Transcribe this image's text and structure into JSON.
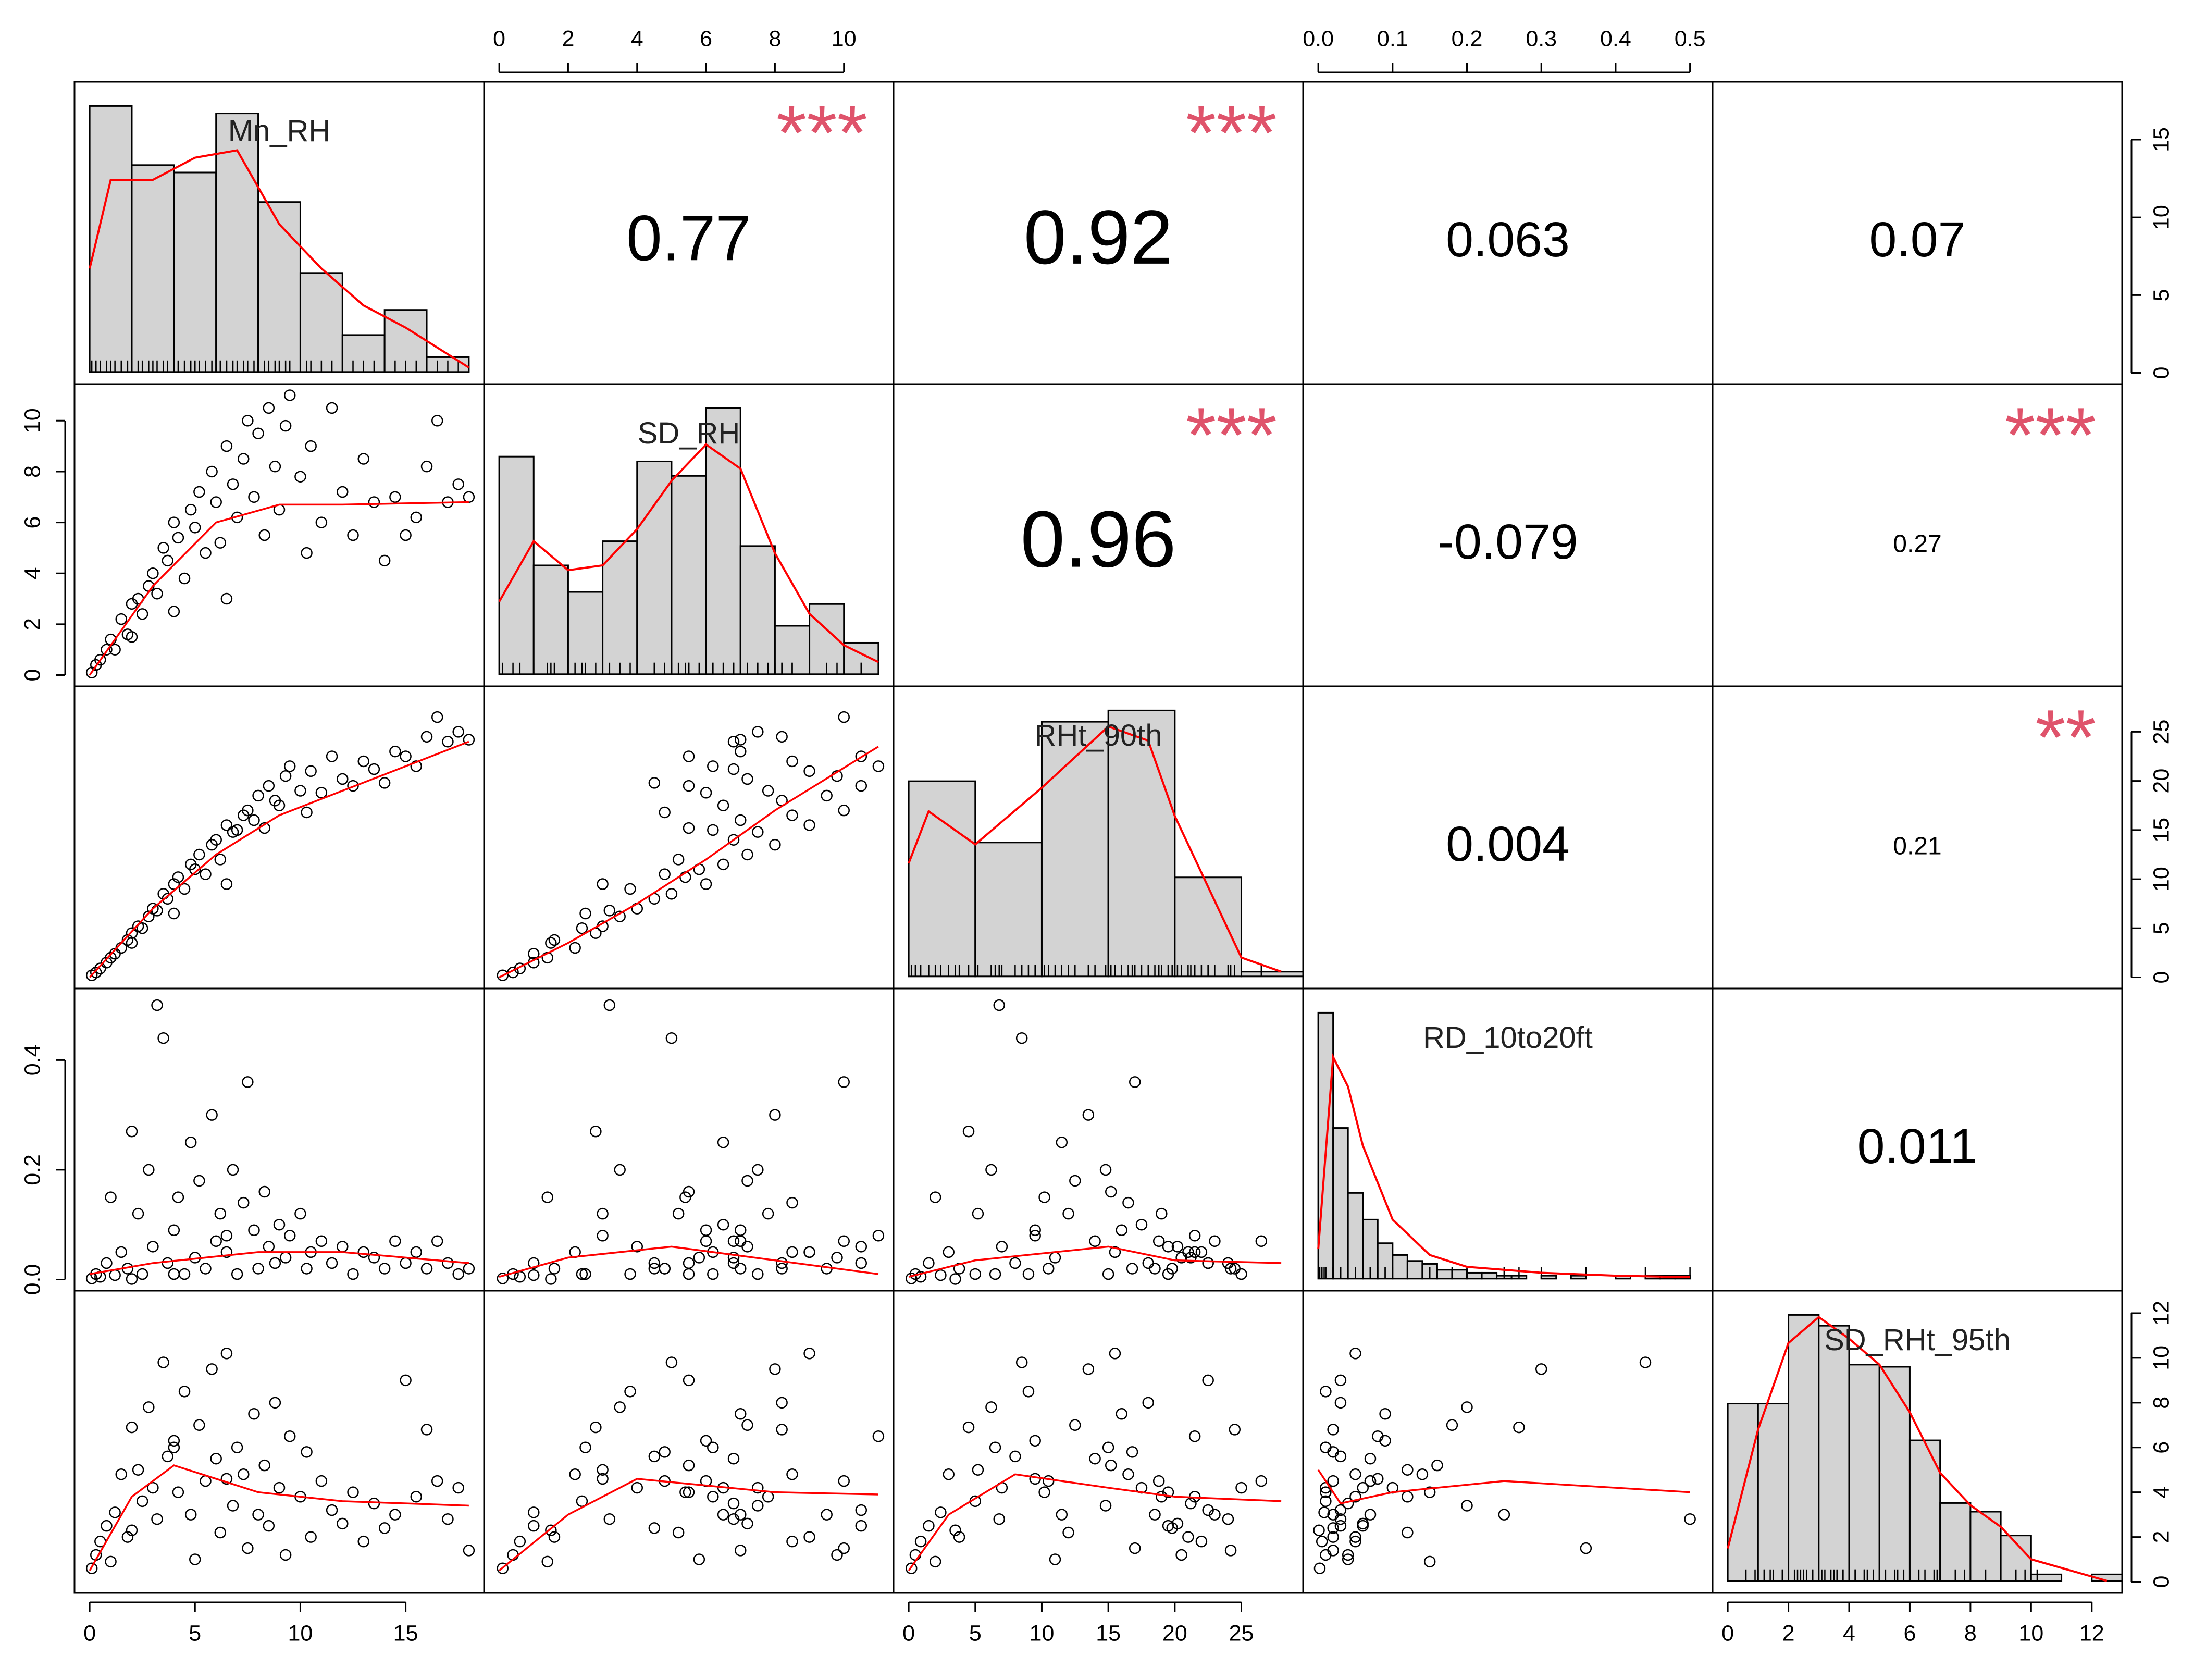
{
  "chart_data": {
    "type": "scatter_matrix",
    "variables": [
      "Mn_RH",
      "SD_RH",
      "RHt_90th",
      "RD_10to20ft",
      "SD_RHt_95th"
    ],
    "lims": [
      [
        0,
        18
      ],
      [
        0,
        11
      ],
      [
        0,
        28.5
      ],
      [
        0,
        0.51
      ],
      [
        0,
        12.5
      ]
    ],
    "point_color": "#000000",
    "smooth_color": "#ff0000",
    "star_color": "#df536b",
    "hist_color": "#d3d3d3",
    "observations": [
      [
        0.1,
        0.1,
        0.2,
        0.002,
        0.6
      ],
      [
        0.3,
        0.4,
        0.5,
        0.01,
        1.2
      ],
      [
        0.5,
        0.6,
        0.9,
        0.005,
        1.8
      ],
      [
        0.8,
        1.0,
        1.5,
        0.03,
        2.5
      ],
      [
        1.0,
        1.4,
        2.0,
        0.15,
        0.9
      ],
      [
        1.2,
        1.0,
        2.4,
        0.008,
        3.1
      ],
      [
        1.5,
        2.2,
        3.0,
        0.05,
        4.8
      ],
      [
        1.8,
        1.6,
        3.8,
        0.02,
        2.0
      ],
      [
        2.0,
        2.8,
        4.5,
        0.27,
        6.9
      ],
      [
        2.3,
        3.0,
        5.2,
        0.12,
        5.0
      ],
      [
        2.5,
        2.4,
        5.0,
        0.01,
        3.6
      ],
      [
        2.8,
        3.5,
        6.2,
        0.2,
        7.8
      ],
      [
        3.0,
        4.0,
        7.0,
        0.06,
        4.2
      ],
      [
        3.2,
        3.2,
        6.8,
        0.5,
        2.8
      ],
      [
        3.5,
        5.0,
        8.5,
        0.44,
        9.8
      ],
      [
        3.7,
        4.5,
        8.0,
        0.03,
        5.6
      ],
      [
        4.0,
        6.0,
        9.5,
        0.09,
        6.3
      ],
      [
        4.2,
        5.4,
        10.2,
        0.15,
        4.0
      ],
      [
        4.5,
        3.8,
        9.0,
        0.01,
        8.5
      ],
      [
        4.8,
        6.5,
        11.5,
        0.25,
        3.0
      ],
      [
        5.0,
        5.8,
        11.0,
        0.04,
        1.0
      ],
      [
        5.2,
        7.2,
        12.5,
        0.18,
        7.0
      ],
      [
        5.5,
        4.8,
        10.5,
        0.02,
        4.5
      ],
      [
        5.8,
        8.0,
        13.5,
        0.3,
        9.5
      ],
      [
        6.0,
        6.8,
        14.0,
        0.07,
        5.5
      ],
      [
        6.2,
        5.2,
        12.0,
        0.12,
        2.2
      ],
      [
        6.5,
        9.0,
        15.5,
        0.05,
        10.2
      ],
      [
        6.8,
        7.5,
        14.8,
        0.2,
        3.4
      ],
      [
        7.0,
        6.2,
        15.0,
        0.01,
        6.0
      ],
      [
        7.3,
        8.5,
        16.5,
        0.14,
        4.8
      ],
      [
        7.5,
        10.0,
        17.0,
        0.36,
        1.5
      ],
      [
        7.8,
        7.0,
        16.0,
        0.09,
        7.5
      ],
      [
        8.0,
        9.5,
        18.5,
        0.02,
        3.0
      ],
      [
        8.3,
        5.5,
        15.2,
        0.16,
        5.2
      ],
      [
        8.5,
        10.5,
        19.5,
        0.06,
        2.5
      ],
      [
        8.8,
        8.2,
        18.0,
        0.03,
        8.0
      ],
      [
        9.0,
        6.5,
        17.5,
        0.1,
        4.2
      ],
      [
        9.3,
        9.8,
        20.5,
        0.04,
        1.2
      ],
      [
        9.5,
        11.0,
        21.5,
        0.08,
        6.5
      ],
      [
        10.0,
        7.8,
        19.0,
        0.12,
        3.8
      ],
      [
        10.3,
        4.8,
        16.8,
        0.02,
        5.8
      ],
      [
        10.5,
        9.0,
        21.0,
        0.05,
        2.0
      ],
      [
        11.0,
        6.0,
        18.8,
        0.07,
        4.5
      ],
      [
        11.5,
        10.5,
        22.5,
        0.03,
        3.2
      ],
      [
        12.0,
        7.2,
        20.2,
        0.06,
        2.6
      ],
      [
        12.5,
        5.5,
        19.5,
        0.01,
        4.0
      ],
      [
        13.0,
        8.5,
        22.0,
        0.05,
        1.8
      ],
      [
        13.5,
        6.8,
        21.2,
        0.04,
        3.5
      ],
      [
        14.0,
        4.5,
        19.8,
        0.02,
        2.4
      ],
      [
        14.5,
        7.0,
        23.0,
        0.07,
        3.0
      ],
      [
        15.0,
        5.5,
        22.5,
        0.03,
        9.0
      ],
      [
        15.5,
        6.2,
        21.5,
        0.05,
        3.8
      ],
      [
        16.0,
        8.2,
        24.5,
        0.02,
        6.8
      ],
      [
        16.5,
        10.0,
        26.5,
        0.07,
        4.5
      ],
      [
        17.0,
        6.8,
        24.0,
        0.03,
        2.8
      ],
      [
        17.5,
        7.5,
        25.0,
        0.01,
        4.2
      ],
      [
        18.0,
        7.0,
        24.2,
        0.02,
        1.4
      ],
      [
        2.0,
        1.5,
        3.5,
        0.001,
        2.3
      ],
      [
        4.0,
        2.5,
        6.5,
        0.01,
        6.0
      ],
      [
        6.5,
        3.0,
        9.5,
        0.08,
        4.6
      ]
    ],
    "histograms": [
      {
        "bins": [
          0,
          2,
          4,
          6,
          8,
          10,
          12,
          14,
          16,
          18
        ],
        "counts": [
          18,
          14,
          13.5,
          17.5,
          11.5,
          6.7,
          2.5,
          4.2,
          1
        ],
        "density": {
          "x": [
            0,
            1,
            3,
            5,
            7,
            9,
            11,
            13,
            15,
            18
          ],
          "y": [
            7,
            13,
            13,
            14.5,
            15,
            10,
            7,
            4.5,
            3,
            0.3
          ]
        }
      },
      {
        "bins": [
          0,
          1,
          2,
          3,
          4,
          5,
          6,
          7,
          8,
          9,
          10,
          11
        ],
        "counts": [
          9,
          4.5,
          3.4,
          5.5,
          8.8,
          8.2,
          11,
          5.3,
          2,
          2.9,
          1.3
        ],
        "density": {
          "x": [
            0,
            1,
            2,
            3,
            4,
            5,
            6,
            7,
            8,
            9,
            10,
            11
          ],
          "y": [
            3,
            5.5,
            4.3,
            4.5,
            6,
            8,
            9.5,
            8.5,
            5,
            2.5,
            1.2,
            0.5
          ]
        }
      },
      {
        "bins": [
          0,
          5,
          10,
          15,
          20,
          25,
          30
        ],
        "counts": [
          20.7,
          14.2,
          27,
          28.2,
          10.5,
          0.5
        ],
        "density": {
          "x": [
            0,
            1.5,
            5,
            10,
            15,
            18,
            20,
            25,
            28
          ],
          "y": [
            12,
            17.5,
            14,
            20,
            26.5,
            25,
            17,
            2,
            0.5
          ]
        }
      },
      {
        "bins": [
          0,
          0.02,
          0.04,
          0.06,
          0.08,
          0.1,
          0.12,
          0.14,
          0.16,
          0.18,
          0.2,
          0.22,
          0.24,
          0.26,
          0.28,
          0.3,
          0.32,
          0.34,
          0.36,
          0.38,
          0.4,
          0.42,
          0.44,
          0.46,
          0.48,
          0.5
        ],
        "counts": [
          90,
          51,
          29,
          20,
          12,
          8,
          6,
          5,
          3,
          3,
          2,
          2,
          1,
          1,
          0,
          1,
          0,
          1,
          0,
          0,
          1,
          0,
          1,
          1,
          1
        ],
        "density": {
          "x": [
            0,
            0.02,
            0.04,
            0.06,
            0.1,
            0.15,
            0.2,
            0.3,
            0.4,
            0.5
          ],
          "y": [
            10,
            75,
            65,
            45,
            20,
            8,
            4,
            2,
            1,
            0.5
          ]
        }
      },
      {
        "bins": [
          0,
          1,
          2,
          3,
          4,
          5,
          6,
          7,
          8,
          9,
          10,
          11,
          12,
          13
        ],
        "counts": [
          8.2,
          8.2,
          12.3,
          11.8,
          10,
          9.9,
          6.5,
          3.6,
          3.2,
          2.1,
          0.3,
          0,
          0.3
        ],
        "density": {
          "x": [
            0,
            1,
            2,
            3,
            4,
            5,
            6,
            7,
            8,
            9,
            10,
            12,
            12.5
          ],
          "y": [
            1.5,
            7,
            11,
            12.2,
            11.2,
            10,
            7.8,
            5,
            3.5,
            2.5,
            1,
            0.2,
            0
          ]
        }
      }
    ],
    "smooths": [
      {
        "row": 1,
        "col": 0,
        "x": [
          0,
          3,
          6,
          9,
          12,
          18
        ],
        "y": [
          0,
          3.5,
          6,
          6.7,
          6.7,
          6.8
        ]
      },
      {
        "row": 2,
        "col": 0,
        "x": [
          0,
          3,
          6,
          9,
          12,
          18
        ],
        "y": [
          0,
          7,
          12.5,
          16.5,
          19,
          24
        ]
      },
      {
        "row": 2,
        "col": 1,
        "x": [
          0,
          2,
          4,
          6,
          8,
          11
        ],
        "y": [
          0,
          3.5,
          7.5,
          12,
          17,
          23.5
        ]
      },
      {
        "row": 3,
        "col": 0,
        "x": [
          0,
          3,
          8,
          12,
          18
        ],
        "y": [
          0.01,
          0.03,
          0.05,
          0.05,
          0.03
        ]
      },
      {
        "row": 3,
        "col": 1,
        "x": [
          0,
          2,
          5,
          8,
          11
        ],
        "y": [
          0.005,
          0.04,
          0.06,
          0.035,
          0.01
        ]
      },
      {
        "row": 3,
        "col": 2,
        "x": [
          0,
          5,
          15,
          20,
          28
        ],
        "y": [
          0.005,
          0.035,
          0.06,
          0.035,
          0.03
        ]
      },
      {
        "row": 4,
        "col": 0,
        "x": [
          0,
          2,
          4,
          8,
          12,
          18
        ],
        "y": [
          0.5,
          3.8,
          5.2,
          4,
          3.6,
          3.4
        ]
      },
      {
        "row": 4,
        "col": 1,
        "x": [
          0,
          2,
          4,
          6,
          8,
          11
        ],
        "y": [
          0.5,
          3,
          4.6,
          4.3,
          4,
          3.9
        ]
      },
      {
        "row": 4,
        "col": 2,
        "x": [
          0,
          3,
          8,
          15,
          20,
          28
        ],
        "y": [
          0.5,
          3,
          4.8,
          4.2,
          3.8,
          3.6
        ]
      },
      {
        "row": 4,
        "col": 3,
        "x": [
          0,
          0.03,
          0.1,
          0.25,
          0.5
        ],
        "y": [
          5,
          3.5,
          4,
          4.5,
          4
        ]
      }
    ],
    "correlations": [
      {
        "row": 0,
        "col": 1,
        "value": 0.77,
        "stars": "***"
      },
      {
        "row": 0,
        "col": 2,
        "value": 0.92,
        "stars": "***"
      },
      {
        "row": 0,
        "col": 3,
        "value": 0.063
      },
      {
        "row": 0,
        "col": 4,
        "value": 0.07
      },
      {
        "row": 1,
        "col": 2,
        "value": 0.96,
        "stars": "***"
      },
      {
        "row": 1,
        "col": 3,
        "value": -0.079
      },
      {
        "row": 1,
        "col": 4,
        "value": 0.27,
        "stars": "***"
      },
      {
        "row": 2,
        "col": 3,
        "value": 0.004
      },
      {
        "row": 2,
        "col": 4,
        "value": 0.21,
        "stars": "**"
      },
      {
        "row": 3,
        "col": 4,
        "value": 0.011
      }
    ],
    "axes": [
      {
        "side": "top",
        "panel": 1,
        "ticks": [
          0,
          2,
          4,
          6,
          8,
          10
        ]
      },
      {
        "side": "top",
        "panel": 3,
        "ticks": [
          {
            "value": 0,
            "label": "0.0"
          },
          0.1,
          0.2,
          0.3,
          0.4,
          0.5
        ]
      },
      {
        "side": "right",
        "panel": 0,
        "ticks": [
          0,
          5,
          10,
          15
        ]
      },
      {
        "side": "right",
        "panel": 2,
        "ticks": [
          0,
          5,
          10,
          15,
          20,
          25
        ]
      },
      {
        "side": "right",
        "panel": 4,
        "ticks": [
          0,
          2,
          4,
          6,
          8,
          10,
          12
        ]
      },
      {
        "side": "left",
        "panel": 1,
        "ticks": [
          0,
          2,
          4,
          6,
          8,
          10
        ]
      },
      {
        "side": "left",
        "panel": 3,
        "ticks": [
          {
            "value": 0,
            "label": "0.0"
          },
          0.2,
          0.4
        ]
      },
      {
        "side": "bottom",
        "panel": 0,
        "ticks": [
          0,
          5,
          10,
          15
        ]
      },
      {
        "side": "bottom",
        "panel": 2,
        "ticks": [
          0,
          5,
          10,
          15,
          20,
          25
        ]
      },
      {
        "side": "bottom",
        "panel": 4,
        "ticks": [
          0,
          2,
          4,
          6,
          8,
          10,
          12
        ]
      }
    ]
  }
}
